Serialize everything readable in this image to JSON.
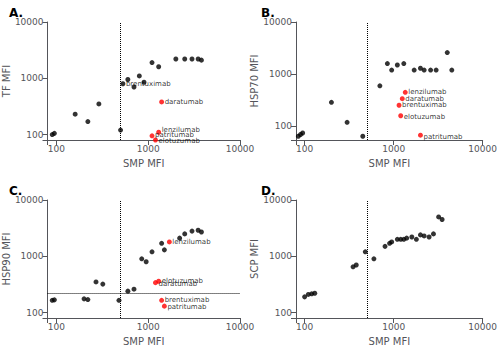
{
  "chart_data": [
    {
      "type": "scatter",
      "title": "A.",
      "xlabel": "SMP MFI",
      "ylabel": "TF MFI",
      "log": true,
      "grid": false,
      "xlim": [
        80,
        10000
      ],
      "ylim": [
        80,
        10000
      ],
      "xticks": [
        100,
        1000,
        10000
      ],
      "yticks": [
        100,
        1000,
        10000
      ],
      "vline": 500,
      "series": [
        {
          "color": "black",
          "x": [
            90,
            95,
            160,
            220,
            290,
            500,
            530,
            600,
            700,
            800,
            900,
            1100,
            1300,
            2000,
            2500,
            3000,
            3500,
            3800
          ],
          "values": [
            100,
            105,
            230,
            170,
            350,
            120,
            800,
            950,
            700,
            1100,
            850,
            1900,
            1600,
            2200,
            2200,
            2200,
            2200,
            2100
          ]
        },
        {
          "color": "red",
          "x": [
            1400,
            1300,
            1100,
            1200
          ],
          "values": [
            380,
            110,
            95,
            80
          ]
        }
      ],
      "annotations": [
        {
          "x": 530,
          "y": 800,
          "text": "brentuximab"
        },
        {
          "x": 1400,
          "y": 380,
          "text": "daratumab"
        },
        {
          "x": 1300,
          "y": 120,
          "text": "lenzilumab"
        },
        {
          "x": 1100,
          "y": 100,
          "text": "patritumab"
        },
        {
          "x": 1200,
          "y": 78,
          "text": "elotuzumab"
        }
      ]
    },
    {
      "type": "scatter",
      "title": "B.",
      "xlabel": "SMP MFI",
      "ylabel": "HSP70 MFI",
      "log": true,
      "grid": false,
      "xlim": [
        80,
        10000
      ],
      "ylim": [
        55,
        10000
      ],
      "xticks": [
        100,
        1000,
        10000
      ],
      "yticks": [
        100,
        1000,
        10000
      ],
      "vline": 500,
      "series": [
        {
          "color": "black",
          "x": [
            85,
            90,
            95,
            200,
            300,
            450,
            700,
            850,
            950,
            1100,
            1300,
            1700,
            2000,
            2200,
            2600,
            3000,
            4000,
            4500
          ],
          "values": [
            65,
            70,
            75,
            290,
            120,
            65,
            600,
            1600,
            1200,
            1500,
            1600,
            1200,
            1300,
            1200,
            1200,
            1200,
            2600,
            1200
          ]
        },
        {
          "color": "red",
          "x": [
            1350,
            1250,
            1150,
            1200,
            2000
          ],
          "values": [
            450,
            340,
            255,
            160,
            68
          ]
        }
      ],
      "annotations": [
        {
          "x": 1350,
          "y": 450,
          "text": "lenzilumab"
        },
        {
          "x": 1250,
          "y": 340,
          "text": "daratumab"
        },
        {
          "x": 1150,
          "y": 260,
          "text": "brentuximab"
        },
        {
          "x": 1200,
          "y": 155,
          "text": "elotuzumab"
        },
        {
          "x": 2000,
          "y": 62,
          "text": "patritumab"
        }
      ]
    },
    {
      "type": "scatter",
      "title": "C.",
      "xlabel": "SMP MFI",
      "ylabel": "HSP90 MFI",
      "log": true,
      "grid": false,
      "xlim": [
        80,
        10000
      ],
      "ylim": [
        80,
        10000
      ],
      "xticks": [
        100,
        1000,
        10000
      ],
      "yticks": [
        100,
        1000,
        10000
      ],
      "vline": 500,
      "hline": 220,
      "series": [
        {
          "color": "black",
          "x": [
            90,
            95,
            200,
            220,
            270,
            320,
            480,
            600,
            700,
            850,
            950,
            1100,
            1400,
            1500,
            2200,
            2500,
            3000,
            3500,
            3800
          ],
          "values": [
            165,
            168,
            175,
            170,
            350,
            320,
            165,
            240,
            260,
            900,
            800,
            1200,
            1700,
            1300,
            2100,
            2500,
            2800,
            2900,
            2700
          ]
        },
        {
          "color": "red",
          "x": [
            1700,
            1300,
            1200,
            1400,
            1500
          ],
          "values": [
            1800,
            360,
            340,
            165,
            130
          ]
        }
      ],
      "annotations": [
        {
          "x": 1700,
          "y": 1800,
          "text": "lenzilumab"
        },
        {
          "x": 1300,
          "y": 370,
          "text": "elotuzumab"
        },
        {
          "x": 1200,
          "y": 320,
          "text": "daratumab"
        },
        {
          "x": 1400,
          "y": 168,
          "text": "brentuximab"
        },
        {
          "x": 1500,
          "y": 125,
          "text": "patritumab"
        }
      ]
    },
    {
      "type": "scatter",
      "title": "D.",
      "xlabel": "SMP MFI",
      "ylabel": "SCP MFI",
      "log": true,
      "grid": false,
      "xlim": [
        80,
        10000
      ],
      "ylim": [
        80,
        10000
      ],
      "xticks": [
        100,
        1000,
        10000
      ],
      "yticks": [
        100,
        1000,
        10000
      ],
      "vline": 500,
      "series": [
        {
          "color": "black",
          "x": [
            100,
            110,
            120,
            130,
            350,
            380,
            480,
            600,
            800,
            900,
            950,
            1100,
            1200,
            1300,
            1400,
            1600,
            1800,
            2000,
            2200,
            2500,
            2800,
            3200,
            3500
          ],
          "values": [
            190,
            210,
            215,
            220,
            650,
            700,
            1200,
            900,
            1500,
            1700,
            1800,
            2000,
            2000,
            2000,
            2100,
            2200,
            2000,
            2400,
            2300,
            2200,
            2500,
            5000,
            4500
          ]
        }
      ],
      "annotations": []
    }
  ]
}
